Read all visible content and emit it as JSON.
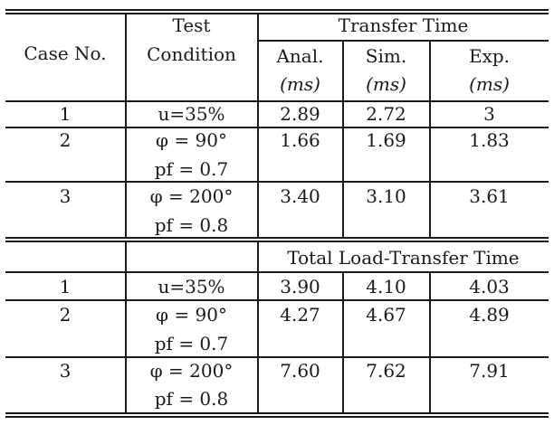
{
  "headers": {
    "case_no": "Case No.",
    "test_line1": "Test",
    "test_line2": "Condition",
    "transfer_time": "Transfer Time",
    "anal": "Anal.",
    "sim": "Sim.",
    "exp": "Exp.",
    "unit": "(ms)",
    "total_load": "Total Load-Transfer Time"
  },
  "transfer_rows": [
    {
      "case": "1",
      "cond1": "u=35%",
      "cond2": "",
      "anal": "2.89",
      "sim": "2.72",
      "exp": "3"
    },
    {
      "case": "2",
      "cond1": "φ  =  90°",
      "cond2": "pf = 0.7",
      "anal": "1.66",
      "sim": "1.69",
      "exp": "1.83"
    },
    {
      "case": "3",
      "cond1": "φ  =  200°",
      "cond2": "pf = 0.8",
      "anal": "3.40",
      "sim": "3.10",
      "exp": "3.61"
    }
  ],
  "load_rows": [
    {
      "case": "1",
      "cond1": "u=35%",
      "cond2": "",
      "anal": "3.90",
      "sim": "4.10",
      "exp": "4.03"
    },
    {
      "case": "2",
      "cond1": "φ  =  90°",
      "cond2": "pf = 0.7",
      "anal": "4.27",
      "sim": "4.67",
      "exp": "4.89"
    },
    {
      "case": "3",
      "cond1": "φ  =  200°",
      "cond2": "pf = 0.8",
      "anal": "7.60",
      "sim": "7.62",
      "exp": "7.91"
    }
  ]
}
